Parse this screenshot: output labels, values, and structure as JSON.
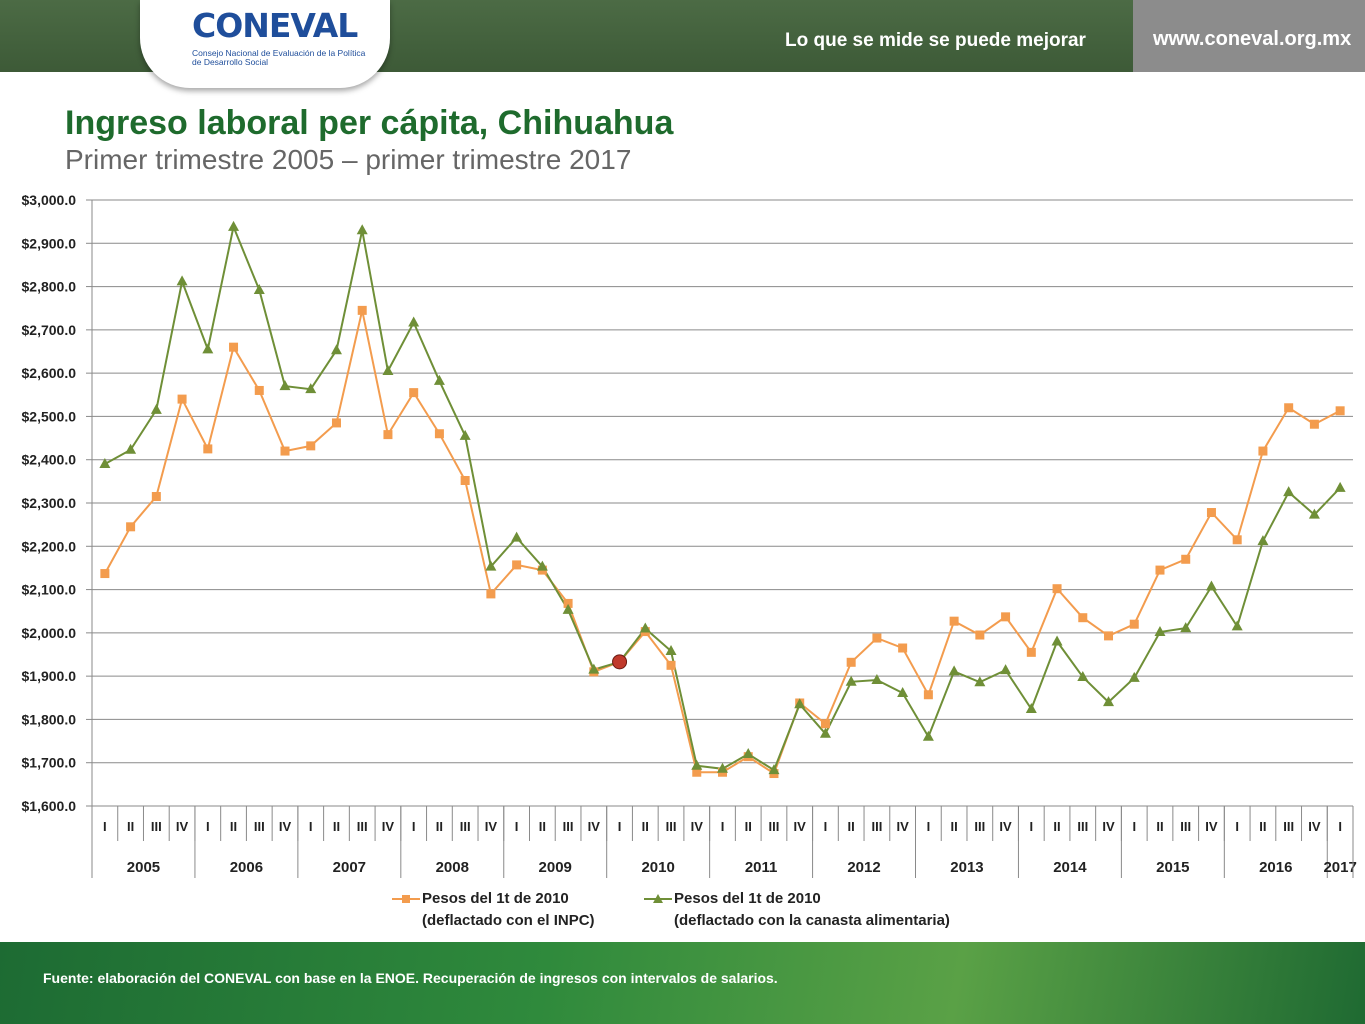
{
  "header": {
    "logo": "CONEVAL",
    "logo_subtitle": "Consejo Nacional de Evaluación de la Política de Desarrollo Social",
    "tagline": "Lo que se mide se puede mejorar",
    "url": "www.coneval.org.mx"
  },
  "colors": {
    "header_green": "#4c6b45",
    "title_green": "#1e6b2d",
    "series_inpc": "#f39c4e",
    "series_canasta": "#6f8f37",
    "highlight_point": "#c0392b"
  },
  "footer": {
    "source": "Fuente: elaboración del CONEVAL con base en la ENOE. Recuperación de ingresos con intervalos de salarios."
  },
  "chart_data": {
    "type": "line",
    "title": "Ingreso laboral per cápita, Chihuahua",
    "subtitle": "Primer trimestre 2005 – primer trimestre 2017",
    "ylim": [
      1600,
      3000
    ],
    "ytick_step": 100,
    "ytick_labels": [
      "$1,600.0",
      "$1,700.0",
      "$1,800.0",
      "$1,900.0",
      "$2,000.0",
      "$2,100.0",
      "$2,200.0",
      "$2,300.0",
      "$2,400.0",
      "$2,500.0",
      "$2,600.0",
      "$2,700.0",
      "$2,800.0",
      "$2,900.0",
      "$3,000.0"
    ],
    "grid": true,
    "legend_position": "bottom",
    "years": [
      "2005",
      "2006",
      "2007",
      "2008",
      "2009",
      "2010",
      "2011",
      "2012",
      "2013",
      "2014",
      "2015",
      "2016",
      "2017"
    ],
    "quarters": [
      "I",
      "II",
      "III",
      "IV",
      "I",
      "II",
      "III",
      "IV",
      "I",
      "II",
      "III",
      "IV",
      "I",
      "II",
      "III",
      "IV",
      "I",
      "II",
      "III",
      "IV",
      "I",
      "II",
      "III",
      "IV",
      "I",
      "II",
      "III",
      "IV",
      "I",
      "II",
      "III",
      "IV",
      "I",
      "II",
      "III",
      "IV",
      "I",
      "II",
      "III",
      "IV",
      "I",
      "II",
      "III",
      "IV",
      "I",
      "II",
      "III",
      "IV",
      "I"
    ],
    "highlight_index": 20,
    "series": [
      {
        "name": "Pesos del 1t de 2010 (deflactado con el INPC)",
        "legend_line1": "Pesos del 1t de 2010",
        "legend_line2": "(deflactado con el INPC)",
        "marker": "square",
        "values": [
          2137,
          2245,
          2315,
          2540,
          2425,
          2660,
          2560,
          2420,
          2432,
          2485,
          2745,
          2458,
          2555,
          2460,
          2352,
          2090,
          2157,
          2145,
          2068,
          1910,
          1933,
          2003,
          1925,
          1678,
          1678,
          1714,
          1675,
          1838,
          1790,
          1932,
          1988,
          1965,
          1857,
          2027,
          1995,
          2037,
          1955,
          2102,
          2035,
          1993,
          2020,
          2145,
          2170,
          2278,
          2215,
          2420,
          2520,
          2482,
          2513
        ]
      },
      {
        "name": "Pesos del 1t de 2010 (deflactado con la canasta alimentaria)",
        "legend_line1": "Pesos del 1t de 2010",
        "legend_line2": "(deflactado con la canasta alimentaria)",
        "marker": "triangle",
        "values": [
          2390,
          2423,
          2515,
          2812,
          2655,
          2938,
          2792,
          2570,
          2563,
          2653,
          2930,
          2605,
          2717,
          2582,
          2455,
          2153,
          2220,
          2153,
          2053,
          1915,
          1933,
          2010,
          1958,
          1693,
          1686,
          1720,
          1683,
          1835,
          1767,
          1887,
          1891,
          1861,
          1760,
          1911,
          1886,
          1914,
          1824,
          1980,
          1898,
          1840,
          1896,
          2002,
          2011,
          2107,
          2015,
          2212,
          2325,
          2273,
          2335
        ]
      }
    ]
  }
}
